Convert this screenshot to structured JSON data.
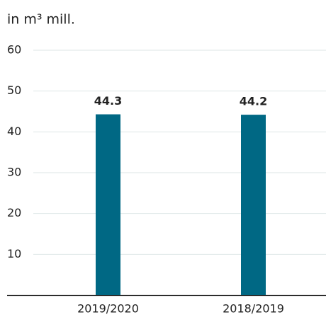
{
  "chart_data": {
    "type": "bar",
    "y_axis_label": "in m³ mill.",
    "categories": [
      "2019/2020",
      "2018/2019"
    ],
    "values": [
      44.3,
      44.2
    ],
    "color": "#006884",
    "ylim": [
      0,
      60
    ],
    "yticks": [
      10,
      20,
      30,
      40,
      50,
      60
    ],
    "grid": true
  }
}
